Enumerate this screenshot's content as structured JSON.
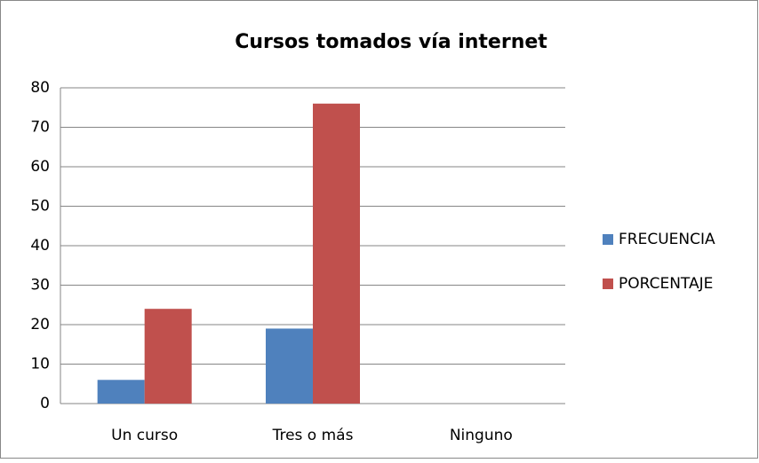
{
  "chart_data": {
    "type": "bar",
    "title": "Cursos tomados vía internet",
    "categories": [
      "Un curso",
      "Tres o más",
      "Ninguno"
    ],
    "series": [
      {
        "name": "FRECUENCIA",
        "color": "#4f81bd",
        "values": [
          6,
          19,
          0
        ]
      },
      {
        "name": "PORCENTAJE",
        "color": "#c0504d",
        "values": [
          24,
          76,
          0
        ]
      }
    ],
    "ylim": [
      0,
      80
    ],
    "yticks": [
      0,
      10,
      20,
      30,
      40,
      50,
      60,
      70,
      80
    ],
    "grid": true,
    "legend": "right"
  }
}
